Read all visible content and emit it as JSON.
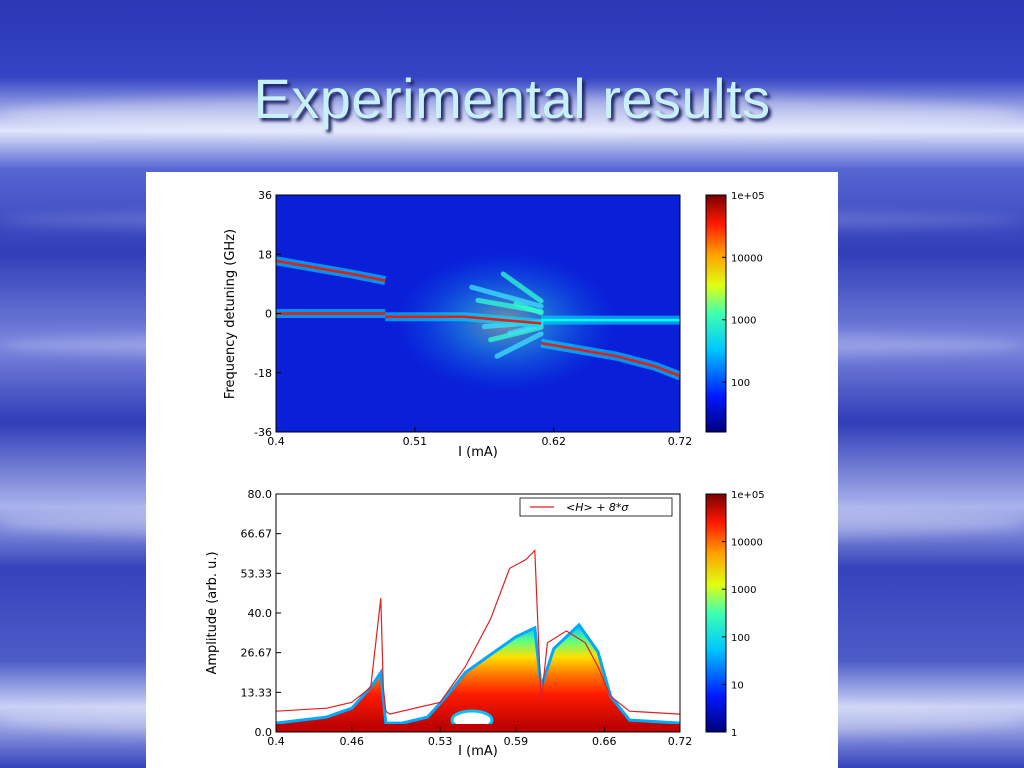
{
  "slide": {
    "title": "Experimental results"
  },
  "chart_data": [
    {
      "type": "heatmap",
      "xlabel": "I (mA)",
      "ylabel": "Frequency detuning (GHz)",
      "xlim": [
        0.4,
        0.72
      ],
      "ylim": [
        -36,
        36
      ],
      "xticks": [
        "0.4",
        "0.51",
        "0.62",
        "0.72"
      ],
      "yticks": [
        "36",
        "18",
        "0",
        "-18",
        "-36"
      ],
      "colorbar": {
        "scale": "log",
        "ticks": [
          "1e+05",
          "10000",
          "1000",
          "100"
        ]
      },
      "traces": [
        {
          "x": [
            0.4,
            0.43,
            0.46,
            0.4865
          ],
          "y": [
            16,
            14,
            12,
            10
          ]
        },
        {
          "x": [
            0.4,
            0.4865
          ],
          "y": [
            0,
            0
          ]
        },
        {
          "x": [
            0.4865,
            0.52,
            0.55,
            0.58,
            0.61
          ],
          "y": [
            -1,
            -1,
            -1,
            -2,
            -3
          ]
        },
        {
          "x": [
            0.61,
            0.64,
            0.67,
            0.7,
            0.72
          ],
          "y": [
            -2,
            -2,
            -2,
            -2,
            -2
          ]
        },
        {
          "x": [
            0.61,
            0.64,
            0.67,
            0.7,
            0.72
          ],
          "y": [
            -9,
            -11,
            -13,
            -16,
            -19
          ]
        }
      ]
    },
    {
      "type": "heatmap",
      "xlabel": "I (mA)",
      "ylabel": "Amplitude (arb. u.)",
      "xlim": [
        0.4,
        0.72
      ],
      "ylim": [
        0,
        80
      ],
      "xticks": [
        "0.4",
        "0.46",
        "0.53",
        "0.59",
        "0.66",
        "0.72"
      ],
      "yticks": [
        "80.0",
        "66.67",
        "53.33",
        "40.0",
        "26.67",
        "13.33",
        "0.0"
      ],
      "legend": {
        "entries": [
          "<H> + 8*σ"
        ],
        "position": "top-right",
        "color": "#e02020"
      },
      "colorbar": {
        "scale": "log",
        "ticks": [
          "1e+05",
          "10000",
          "1000",
          "100",
          "10",
          "1"
        ]
      },
      "series": [
        {
          "name": "<H> + 8*σ",
          "x": [
            0.4,
            0.44,
            0.46,
            0.475,
            0.483,
            0.485,
            0.487,
            0.49,
            0.53,
            0.55,
            0.57,
            0.585,
            0.598,
            0.605,
            0.61,
            0.615,
            0.63,
            0.645,
            0.655,
            0.665,
            0.68,
            0.72
          ],
          "y": [
            7,
            8,
            10,
            15,
            45,
            15,
            7,
            6,
            10,
            22,
            38,
            55,
            58,
            61,
            10,
            30,
            34,
            30,
            22,
            12,
            7,
            6
          ]
        },
        {
          "name": "density-envelope",
          "x": [
            0.4,
            0.44,
            0.46,
            0.475,
            0.483,
            0.487,
            0.5,
            0.52,
            0.535,
            0.55,
            0.57,
            0.59,
            0.605,
            0.61,
            0.62,
            0.64,
            0.655,
            0.665,
            0.68,
            0.72
          ],
          "y": [
            3,
            5,
            8,
            15,
            20,
            3,
            3,
            5,
            12,
            20,
            26,
            32,
            35,
            15,
            28,
            36,
            27,
            12,
            4,
            3
          ]
        }
      ]
    }
  ]
}
